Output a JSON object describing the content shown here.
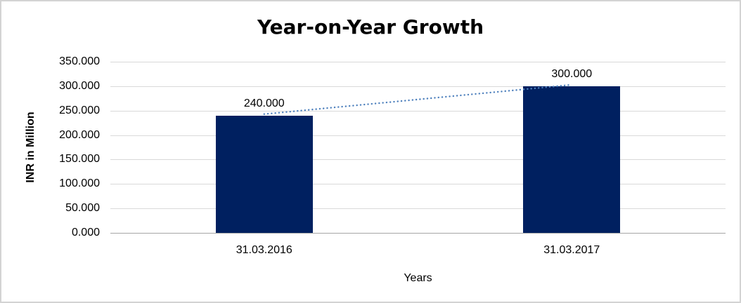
{
  "window": {
    "background": "#ffffff",
    "border_color": "#d3d3d3"
  },
  "chart_data": {
    "type": "bar",
    "title": "Year-on-Year Growth",
    "xlabel": "Years",
    "ylabel": "INR in Million",
    "categories": [
      "31.03.2016",
      "31.03.2017"
    ],
    "values": [
      240,
      300
    ],
    "value_labels": [
      "240.000",
      "300.000"
    ],
    "ylim": [
      0,
      350
    ],
    "ytick_step": 50,
    "ytick_labels": [
      "0.000",
      "50.000",
      "100.000",
      "150.000",
      "200.000",
      "250.000",
      "300.000",
      "350.000"
    ],
    "grid": true,
    "legend": "none",
    "bar_color": "#002060",
    "gridline_color": "#d9d9d9",
    "axis_line_color": "#a6a6a6",
    "trendline": {
      "type": "linear",
      "style": "dotted",
      "color": "#4f81bd"
    }
  }
}
